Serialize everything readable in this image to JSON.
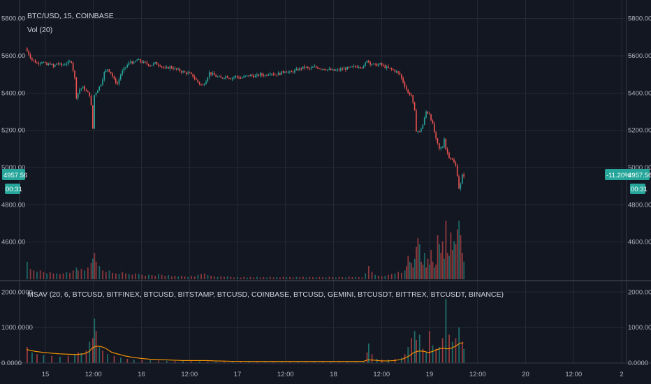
{
  "chart_data": {
    "type": "candlestick",
    "symbol_title": "BTC/USD, 15, COINBASE",
    "volume_label": "Vol (20)",
    "indicator_label": "MSAV (20, 6, BTCUSD, BITFINEX, BTCUSD, BITSTAMP, BTCUSD, COINBASE, BTCUSD, GEMINI, BTCUSDT, BITTREX, BTCUSDT, BINANCE)",
    "price_axis": {
      "ylim": [
        4400,
        5900
      ],
      "ticks": [
        "5800.00",
        "5600.00",
        "5400.00",
        "5200.00",
        "5000.00",
        "4800.00",
        "4600.00"
      ],
      "tick_values": [
        5800,
        5600,
        5400,
        5200,
        5000,
        4800,
        4600
      ]
    },
    "indicator_axis": {
      "ylim": [
        0,
        2300
      ],
      "ticks": [
        "2000.0000",
        "1000.0000",
        "0.0000"
      ],
      "tick_values": [
        2000,
        1000,
        0
      ]
    },
    "x_axis": {
      "labels": [
        "15",
        "12:00",
        "16",
        "12:00",
        "17",
        "12:00",
        "18",
        "12:00",
        "19",
        "12:00",
        "20",
        "12:00",
        "2"
      ]
    },
    "last_price": {
      "value": 4957.56,
      "label": "4957.56",
      "change": "-11.20%",
      "countdown": "00:31"
    },
    "price_path": [
      [
        0,
        5640
      ],
      [
        8,
        5580
      ],
      [
        14,
        5560
      ],
      [
        20,
        5570
      ],
      [
        26,
        5550
      ],
      [
        30,
        5560
      ],
      [
        34,
        5540
      ],
      [
        38,
        5560
      ],
      [
        44,
        5550
      ],
      [
        50,
        5560
      ],
      [
        56,
        5570
      ],
      [
        60,
        5480
      ],
      [
        62,
        5380
      ],
      [
        66,
        5420
      ],
      [
        70,
        5430
      ],
      [
        74,
        5410
      ],
      [
        78,
        5390
      ],
      [
        80,
        5330
      ],
      [
        82,
        5210
      ],
      [
        84,
        5390
      ],
      [
        88,
        5420
      ],
      [
        92,
        5450
      ],
      [
        96,
        5510
      ],
      [
        100,
        5530
      ],
      [
        104,
        5510
      ],
      [
        108,
        5470
      ],
      [
        112,
        5450
      ],
      [
        116,
        5500
      ],
      [
        120,
        5530
      ],
      [
        124,
        5550
      ],
      [
        128,
        5570
      ],
      [
        132,
        5560
      ],
      [
        136,
        5580
      ],
      [
        140,
        5570
      ],
      [
        146,
        5560
      ],
      [
        152,
        5550
      ],
      [
        158,
        5560
      ],
      [
        164,
        5550
      ],
      [
        170,
        5530
      ],
      [
        176,
        5540
      ],
      [
        182,
        5530
      ],
      [
        188,
        5520
      ],
      [
        194,
        5510
      ],
      [
        200,
        5505
      ],
      [
        204,
        5490
      ],
      [
        208,
        5470
      ],
      [
        212,
        5450
      ],
      [
        216,
        5440
      ],
      [
        220,
        5470
      ],
      [
        224,
        5510
      ],
      [
        228,
        5500
      ],
      [
        232,
        5490
      ],
      [
        238,
        5480
      ],
      [
        244,
        5490
      ],
      [
        250,
        5480
      ],
      [
        256,
        5490
      ],
      [
        262,
        5480
      ],
      [
        268,
        5490
      ],
      [
        274,
        5495
      ],
      [
        280,
        5490
      ],
      [
        286,
        5500
      ],
      [
        292,
        5495
      ],
      [
        298,
        5510
      ],
      [
        304,
        5500
      ],
      [
        310,
        5505
      ],
      [
        316,
        5520
      ],
      [
        322,
        5510
      ],
      [
        328,
        5520
      ],
      [
        334,
        5530
      ],
      [
        340,
        5540
      ],
      [
        346,
        5530
      ],
      [
        352,
        5540
      ],
      [
        358,
        5535
      ],
      [
        364,
        5530
      ],
      [
        370,
        5525
      ],
      [
        376,
        5520
      ],
      [
        382,
        5525
      ],
      [
        388,
        5530
      ],
      [
        394,
        5535
      ],
      [
        400,
        5540
      ],
      [
        406,
        5545
      ],
      [
        412,
        5540
      ],
      [
        416,
        5580
      ],
      [
        420,
        5560
      ],
      [
        426,
        5550
      ],
      [
        432,
        5555
      ],
      [
        438,
        5540
      ],
      [
        444,
        5530
      ],
      [
        450,
        5520
      ],
      [
        456,
        5500
      ],
      [
        462,
        5440
      ],
      [
        466,
        5400
      ],
      [
        470,
        5390
      ],
      [
        474,
        5300
      ],
      [
        476,
        5200
      ],
      [
        480,
        5190
      ],
      [
        484,
        5230
      ],
      [
        488,
        5300
      ],
      [
        492,
        5290
      ],
      [
        496,
        5230
      ],
      [
        500,
        5150
      ],
      [
        504,
        5100
      ],
      [
        508,
        5110
      ],
      [
        510,
        5160
      ],
      [
        512,
        5100
      ],
      [
        516,
        5060
      ],
      [
        520,
        5040
      ],
      [
        524,
        5010
      ],
      [
        526,
        4960
      ],
      [
        528,
        4890
      ],
      [
        530,
        4910
      ],
      [
        532,
        4957.56
      ]
    ],
    "volume_bars": [
      [
        0,
        60
      ],
      [
        4,
        35
      ],
      [
        8,
        30
      ],
      [
        12,
        25
      ],
      [
        16,
        30
      ],
      [
        20,
        25
      ],
      [
        24,
        20
      ],
      [
        28,
        25
      ],
      [
        32,
        20
      ],
      [
        36,
        20
      ],
      [
        40,
        18
      ],
      [
        44,
        20
      ],
      [
        48,
        25
      ],
      [
        52,
        22
      ],
      [
        56,
        30
      ],
      [
        60,
        40
      ],
      [
        62,
        30
      ],
      [
        66,
        35
      ],
      [
        70,
        30
      ],
      [
        74,
        40
      ],
      [
        78,
        55
      ],
      [
        80,
        70
      ],
      [
        82,
        90
      ],
      [
        84,
        60
      ],
      [
        88,
        45
      ],
      [
        92,
        30
      ],
      [
        96,
        25
      ],
      [
        100,
        30
      ],
      [
        104,
        22
      ],
      [
        108,
        20
      ],
      [
        112,
        18
      ],
      [
        116,
        25
      ],
      [
        120,
        20
      ],
      [
        124,
        18
      ],
      [
        128,
        15
      ],
      [
        132,
        20
      ],
      [
        136,
        18
      ],
      [
        140,
        15
      ],
      [
        144,
        12
      ],
      [
        148,
        15
      ],
      [
        152,
        14
      ],
      [
        156,
        12
      ],
      [
        160,
        18
      ],
      [
        164,
        15
      ],
      [
        168,
        12
      ],
      [
        172,
        14
      ],
      [
        176,
        10
      ],
      [
        180,
        12
      ],
      [
        184,
        10
      ],
      [
        188,
        12
      ],
      [
        192,
        10
      ],
      [
        196,
        8
      ],
      [
        200,
        12
      ],
      [
        204,
        10
      ],
      [
        208,
        15
      ],
      [
        212,
        18
      ],
      [
        216,
        20
      ],
      [
        220,
        14
      ],
      [
        224,
        12
      ],
      [
        228,
        10
      ],
      [
        232,
        8
      ],
      [
        236,
        10
      ],
      [
        240,
        8
      ],
      [
        244,
        10
      ],
      [
        248,
        8
      ],
      [
        252,
        6
      ],
      [
        256,
        8
      ],
      [
        260,
        6
      ],
      [
        264,
        8
      ],
      [
        268,
        6
      ],
      [
        272,
        8
      ],
      [
        276,
        6
      ],
      [
        280,
        8
      ],
      [
        284,
        6
      ],
      [
        288,
        7
      ],
      [
        292,
        6
      ],
      [
        296,
        8
      ],
      [
        300,
        6
      ],
      [
        304,
        7
      ],
      [
        308,
        6
      ],
      [
        312,
        9
      ],
      [
        316,
        7
      ],
      [
        320,
        8
      ],
      [
        324,
        6
      ],
      [
        328,
        8
      ],
      [
        332,
        7
      ],
      [
        336,
        9
      ],
      [
        340,
        6
      ],
      [
        344,
        8
      ],
      [
        348,
        7
      ],
      [
        352,
        6
      ],
      [
        356,
        8
      ],
      [
        360,
        7
      ],
      [
        364,
        6
      ],
      [
        368,
        8
      ],
      [
        372,
        7
      ],
      [
        376,
        6
      ],
      [
        380,
        8
      ],
      [
        384,
        7
      ],
      [
        388,
        6
      ],
      [
        392,
        9
      ],
      [
        396,
        7
      ],
      [
        400,
        8
      ],
      [
        404,
        7
      ],
      [
        408,
        6
      ],
      [
        412,
        20
      ],
      [
        416,
        45
      ],
      [
        420,
        25
      ],
      [
        424,
        15
      ],
      [
        428,
        12
      ],
      [
        432,
        10
      ],
      [
        436,
        12
      ],
      [
        440,
        15
      ],
      [
        444,
        18
      ],
      [
        448,
        20
      ],
      [
        452,
        25
      ],
      [
        456,
        22
      ],
      [
        460,
        30
      ],
      [
        462,
        45
      ],
      [
        464,
        80
      ],
      [
        466,
        60
      ],
      [
        468,
        55
      ],
      [
        470,
        40
      ],
      [
        472,
        70
      ],
      [
        474,
        110
      ],
      [
        476,
        140
      ],
      [
        478,
        120
      ],
      [
        480,
        60
      ],
      [
        482,
        50
      ],
      [
        484,
        90
      ],
      [
        486,
        40
      ],
      [
        488,
        70
      ],
      [
        490,
        50
      ],
      [
        492,
        100
      ],
      [
        494,
        60
      ],
      [
        496,
        40
      ],
      [
        498,
        50
      ],
      [
        500,
        150
      ],
      [
        502,
        120
      ],
      [
        504,
        90
      ],
      [
        506,
        130
      ],
      [
        508,
        70
      ],
      [
        510,
        200
      ],
      [
        512,
        90
      ],
      [
        514,
        80
      ],
      [
        516,
        160
      ],
      [
        518,
        100
      ],
      [
        520,
        130
      ],
      [
        522,
        120
      ],
      [
        524,
        170
      ],
      [
        526,
        200
      ],
      [
        528,
        150
      ],
      [
        530,
        90
      ],
      [
        532,
        60
      ]
    ],
    "indicator_line": [
      [
        0,
        380
      ],
      [
        10,
        330
      ],
      [
        20,
        300
      ],
      [
        30,
        280
      ],
      [
        40,
        260
      ],
      [
        50,
        250
      ],
      [
        60,
        240
      ],
      [
        70,
        260
      ],
      [
        76,
        320
      ],
      [
        80,
        420
      ],
      [
        84,
        470
      ],
      [
        90,
        470
      ],
      [
        96,
        420
      ],
      [
        100,
        360
      ],
      [
        104,
        300
      ],
      [
        112,
        250
      ],
      [
        120,
        200
      ],
      [
        130,
        160
      ],
      [
        140,
        130
      ],
      [
        150,
        110
      ],
      [
        160,
        100
      ],
      [
        170,
        90
      ],
      [
        180,
        80
      ],
      [
        190,
        70
      ],
      [
        200,
        70
      ],
      [
        210,
        70
      ],
      [
        220,
        70
      ],
      [
        230,
        60
      ],
      [
        240,
        55
      ],
      [
        250,
        50
      ],
      [
        260,
        50
      ],
      [
        270,
        45
      ],
      [
        280,
        45
      ],
      [
        290,
        45
      ],
      [
        300,
        45
      ],
      [
        310,
        45
      ],
      [
        320,
        45
      ],
      [
        330,
        45
      ],
      [
        340,
        45
      ],
      [
        350,
        45
      ],
      [
        360,
        45
      ],
      [
        370,
        45
      ],
      [
        380,
        45
      ],
      [
        390,
        45
      ],
      [
        400,
        45
      ],
      [
        410,
        45
      ],
      [
        416,
        90
      ],
      [
        424,
        80
      ],
      [
        432,
        60
      ],
      [
        440,
        60
      ],
      [
        448,
        70
      ],
      [
        456,
        100
      ],
      [
        460,
        130
      ],
      [
        466,
        200
      ],
      [
        472,
        300
      ],
      [
        478,
        340
      ],
      [
        484,
        330
      ],
      [
        490,
        290
      ],
      [
        496,
        340
      ],
      [
        500,
        380
      ],
      [
        506,
        420
      ],
      [
        512,
        400
      ],
      [
        518,
        420
      ],
      [
        524,
        500
      ],
      [
        528,
        560
      ],
      [
        532,
        570
      ]
    ],
    "indicator_bars": [
      [
        0,
        450
      ],
      [
        6,
        300
      ],
      [
        12,
        250
      ],
      [
        20,
        230
      ],
      [
        30,
        200
      ],
      [
        40,
        180
      ],
      [
        50,
        200
      ],
      [
        58,
        250
      ],
      [
        62,
        300
      ],
      [
        66,
        280
      ],
      [
        72,
        350
      ],
      [
        76,
        600
      ],
      [
        80,
        700
      ],
      [
        82,
        1250
      ],
      [
        84,
        900
      ],
      [
        88,
        450
      ],
      [
        92,
        350
      ],
      [
        98,
        250
      ],
      [
        106,
        200
      ],
      [
        114,
        150
      ],
      [
        122,
        120
      ],
      [
        130,
        100
      ],
      [
        140,
        90
      ],
      [
        150,
        80
      ],
      [
        160,
        70
      ],
      [
        170,
        60
      ],
      [
        180,
        55
      ],
      [
        190,
        50
      ],
      [
        200,
        45
      ],
      [
        210,
        40
      ],
      [
        220,
        40
      ],
      [
        230,
        35
      ],
      [
        240,
        30
      ],
      [
        250,
        30
      ],
      [
        260,
        30
      ],
      [
        270,
        25
      ],
      [
        280,
        25
      ],
      [
        290,
        25
      ],
      [
        300,
        25
      ],
      [
        310,
        25
      ],
      [
        320,
        25
      ],
      [
        330,
        25
      ],
      [
        340,
        25
      ],
      [
        350,
        25
      ],
      [
        360,
        25
      ],
      [
        370,
        25
      ],
      [
        380,
        25
      ],
      [
        390,
        25
      ],
      [
        400,
        25
      ],
      [
        410,
        30
      ],
      [
        414,
        300
      ],
      [
        416,
        550
      ],
      [
        420,
        250
      ],
      [
        426,
        120
      ],
      [
        432,
        100
      ],
      [
        440,
        100
      ],
      [
        448,
        120
      ],
      [
        456,
        150
      ],
      [
        460,
        250
      ],
      [
        464,
        450
      ],
      [
        468,
        700
      ],
      [
        472,
        900
      ],
      [
        474,
        650
      ],
      [
        478,
        800
      ],
      [
        482,
        400
      ],
      [
        486,
        300
      ],
      [
        490,
        900
      ],
      [
        494,
        500
      ],
      [
        498,
        400
      ],
      [
        502,
        450
      ],
      [
        506,
        700
      ],
      [
        510,
        1800
      ],
      [
        514,
        800
      ],
      [
        518,
        600
      ],
      [
        522,
        700
      ],
      [
        526,
        1000
      ],
      [
        530,
        600
      ],
      [
        532,
        400
      ]
    ]
  }
}
